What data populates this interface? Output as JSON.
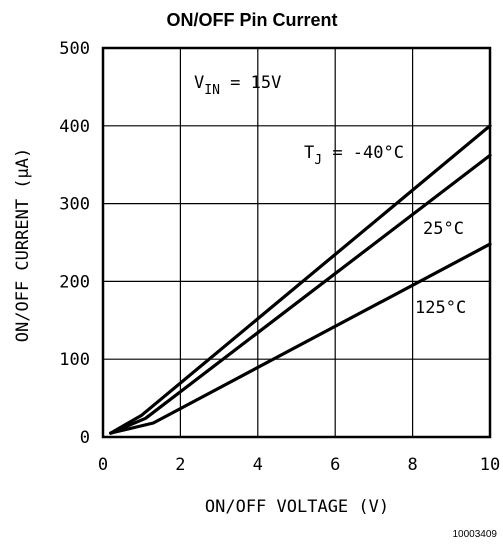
{
  "chart_data": {
    "type": "line",
    "title": "ON/OFF Pin Current",
    "xlabel": "ON/OFF VOLTAGE (V)",
    "ylabel": "ON/OFF CURRENT (μA)",
    "xlim": [
      0,
      10
    ],
    "ylim": [
      0,
      500
    ],
    "x_ticks": [
      "0",
      "2",
      "4",
      "6",
      "8",
      "10"
    ],
    "y_ticks": [
      "0",
      "100",
      "200",
      "300",
      "400",
      "500"
    ],
    "grid": true,
    "condition": {
      "main": "V",
      "sub": "IN",
      "rest": " = 15V"
    },
    "series": [
      {
        "name_main": "T",
        "name_sub": "J",
        "name_rest": " = -40°C",
        "x": [
          0.2,
          1.0,
          10.0
        ],
        "y": [
          5,
          28,
          400
        ]
      },
      {
        "name": "25°C",
        "x": [
          0.2,
          1.1,
          10.0
        ],
        "y": [
          5,
          24,
          362
        ]
      },
      {
        "name": "125°C",
        "x": [
          0.2,
          1.3,
          10.0
        ],
        "y": [
          5,
          18,
          248
        ]
      }
    ],
    "figure_code": "10003409"
  }
}
